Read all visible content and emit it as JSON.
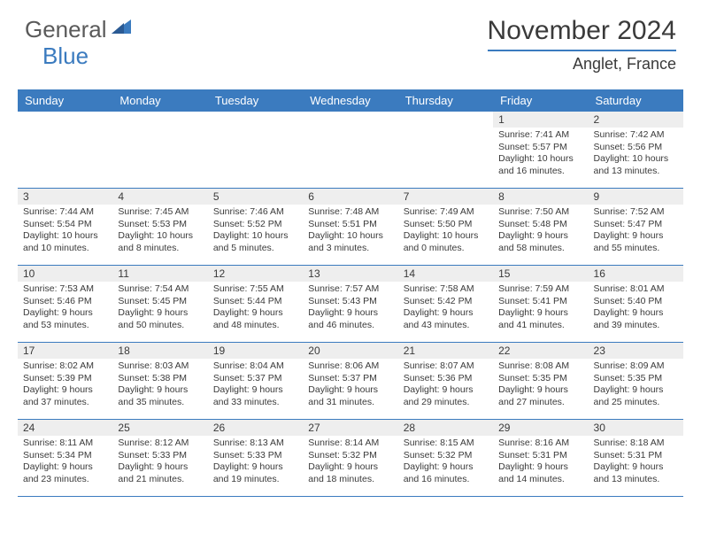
{
  "brand": {
    "text1": "General",
    "text2": "Blue",
    "tri_color": "#3b7bbf"
  },
  "title": "November 2024",
  "location": "Anglet, France",
  "colors": {
    "header_bar": "#3b7bbf",
    "row_divider": "#3b7bbf",
    "daynum_bg": "#eeeeee",
    "text": "#3a3a3a",
    "background": "#ffffff"
  },
  "typography": {
    "title_fontsize": 30,
    "location_fontsize": 18,
    "dow_fontsize": 13,
    "daynum_fontsize": 12,
    "body_fontsize": 10.5
  },
  "days_of_week": [
    "Sunday",
    "Monday",
    "Tuesday",
    "Wednesday",
    "Thursday",
    "Friday",
    "Saturday"
  ],
  "weeks": [
    [
      {
        "n": "",
        "sunrise": "",
        "sunset": "",
        "daylight": ""
      },
      {
        "n": "",
        "sunrise": "",
        "sunset": "",
        "daylight": ""
      },
      {
        "n": "",
        "sunrise": "",
        "sunset": "",
        "daylight": ""
      },
      {
        "n": "",
        "sunrise": "",
        "sunset": "",
        "daylight": ""
      },
      {
        "n": "",
        "sunrise": "",
        "sunset": "",
        "daylight": ""
      },
      {
        "n": "1",
        "sunrise": "Sunrise: 7:41 AM",
        "sunset": "Sunset: 5:57 PM",
        "daylight": "Daylight: 10 hours and 16 minutes."
      },
      {
        "n": "2",
        "sunrise": "Sunrise: 7:42 AM",
        "sunset": "Sunset: 5:56 PM",
        "daylight": "Daylight: 10 hours and 13 minutes."
      }
    ],
    [
      {
        "n": "3",
        "sunrise": "Sunrise: 7:44 AM",
        "sunset": "Sunset: 5:54 PM",
        "daylight": "Daylight: 10 hours and 10 minutes."
      },
      {
        "n": "4",
        "sunrise": "Sunrise: 7:45 AM",
        "sunset": "Sunset: 5:53 PM",
        "daylight": "Daylight: 10 hours and 8 minutes."
      },
      {
        "n": "5",
        "sunrise": "Sunrise: 7:46 AM",
        "sunset": "Sunset: 5:52 PM",
        "daylight": "Daylight: 10 hours and 5 minutes."
      },
      {
        "n": "6",
        "sunrise": "Sunrise: 7:48 AM",
        "sunset": "Sunset: 5:51 PM",
        "daylight": "Daylight: 10 hours and 3 minutes."
      },
      {
        "n": "7",
        "sunrise": "Sunrise: 7:49 AM",
        "sunset": "Sunset: 5:50 PM",
        "daylight": "Daylight: 10 hours and 0 minutes."
      },
      {
        "n": "8",
        "sunrise": "Sunrise: 7:50 AM",
        "sunset": "Sunset: 5:48 PM",
        "daylight": "Daylight: 9 hours and 58 minutes."
      },
      {
        "n": "9",
        "sunrise": "Sunrise: 7:52 AM",
        "sunset": "Sunset: 5:47 PM",
        "daylight": "Daylight: 9 hours and 55 minutes."
      }
    ],
    [
      {
        "n": "10",
        "sunrise": "Sunrise: 7:53 AM",
        "sunset": "Sunset: 5:46 PM",
        "daylight": "Daylight: 9 hours and 53 minutes."
      },
      {
        "n": "11",
        "sunrise": "Sunrise: 7:54 AM",
        "sunset": "Sunset: 5:45 PM",
        "daylight": "Daylight: 9 hours and 50 minutes."
      },
      {
        "n": "12",
        "sunrise": "Sunrise: 7:55 AM",
        "sunset": "Sunset: 5:44 PM",
        "daylight": "Daylight: 9 hours and 48 minutes."
      },
      {
        "n": "13",
        "sunrise": "Sunrise: 7:57 AM",
        "sunset": "Sunset: 5:43 PM",
        "daylight": "Daylight: 9 hours and 46 minutes."
      },
      {
        "n": "14",
        "sunrise": "Sunrise: 7:58 AM",
        "sunset": "Sunset: 5:42 PM",
        "daylight": "Daylight: 9 hours and 43 minutes."
      },
      {
        "n": "15",
        "sunrise": "Sunrise: 7:59 AM",
        "sunset": "Sunset: 5:41 PM",
        "daylight": "Daylight: 9 hours and 41 minutes."
      },
      {
        "n": "16",
        "sunrise": "Sunrise: 8:01 AM",
        "sunset": "Sunset: 5:40 PM",
        "daylight": "Daylight: 9 hours and 39 minutes."
      }
    ],
    [
      {
        "n": "17",
        "sunrise": "Sunrise: 8:02 AM",
        "sunset": "Sunset: 5:39 PM",
        "daylight": "Daylight: 9 hours and 37 minutes."
      },
      {
        "n": "18",
        "sunrise": "Sunrise: 8:03 AM",
        "sunset": "Sunset: 5:38 PM",
        "daylight": "Daylight: 9 hours and 35 minutes."
      },
      {
        "n": "19",
        "sunrise": "Sunrise: 8:04 AM",
        "sunset": "Sunset: 5:37 PM",
        "daylight": "Daylight: 9 hours and 33 minutes."
      },
      {
        "n": "20",
        "sunrise": "Sunrise: 8:06 AM",
        "sunset": "Sunset: 5:37 PM",
        "daylight": "Daylight: 9 hours and 31 minutes."
      },
      {
        "n": "21",
        "sunrise": "Sunrise: 8:07 AM",
        "sunset": "Sunset: 5:36 PM",
        "daylight": "Daylight: 9 hours and 29 minutes."
      },
      {
        "n": "22",
        "sunrise": "Sunrise: 8:08 AM",
        "sunset": "Sunset: 5:35 PM",
        "daylight": "Daylight: 9 hours and 27 minutes."
      },
      {
        "n": "23",
        "sunrise": "Sunrise: 8:09 AM",
        "sunset": "Sunset: 5:35 PM",
        "daylight": "Daylight: 9 hours and 25 minutes."
      }
    ],
    [
      {
        "n": "24",
        "sunrise": "Sunrise: 8:11 AM",
        "sunset": "Sunset: 5:34 PM",
        "daylight": "Daylight: 9 hours and 23 minutes."
      },
      {
        "n": "25",
        "sunrise": "Sunrise: 8:12 AM",
        "sunset": "Sunset: 5:33 PM",
        "daylight": "Daylight: 9 hours and 21 minutes."
      },
      {
        "n": "26",
        "sunrise": "Sunrise: 8:13 AM",
        "sunset": "Sunset: 5:33 PM",
        "daylight": "Daylight: 9 hours and 19 minutes."
      },
      {
        "n": "27",
        "sunrise": "Sunrise: 8:14 AM",
        "sunset": "Sunset: 5:32 PM",
        "daylight": "Daylight: 9 hours and 18 minutes."
      },
      {
        "n": "28",
        "sunrise": "Sunrise: 8:15 AM",
        "sunset": "Sunset: 5:32 PM",
        "daylight": "Daylight: 9 hours and 16 minutes."
      },
      {
        "n": "29",
        "sunrise": "Sunrise: 8:16 AM",
        "sunset": "Sunset: 5:31 PM",
        "daylight": "Daylight: 9 hours and 14 minutes."
      },
      {
        "n": "30",
        "sunrise": "Sunrise: 8:18 AM",
        "sunset": "Sunset: 5:31 PM",
        "daylight": "Daylight: 9 hours and 13 minutes."
      }
    ]
  ]
}
